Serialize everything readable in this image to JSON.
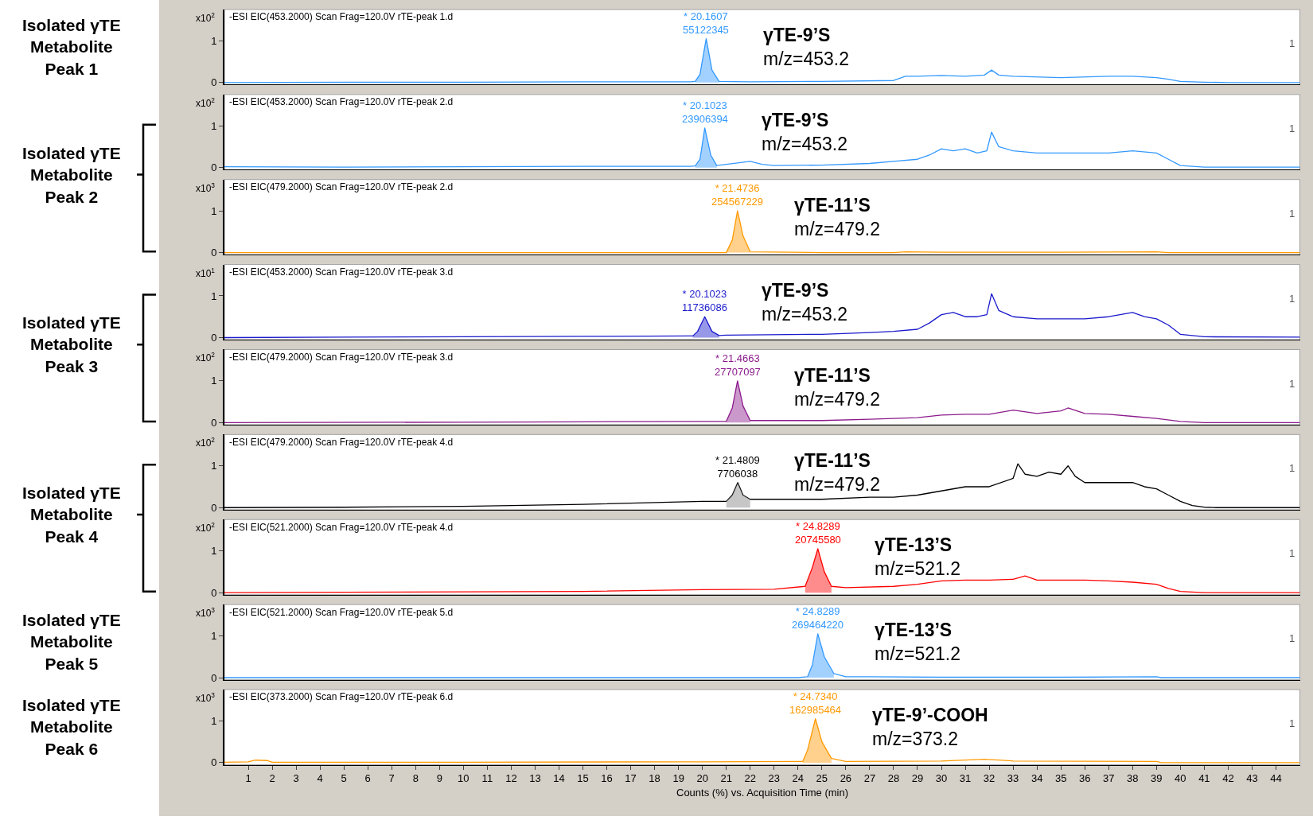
{
  "chart_data": [
    {
      "type": "other",
      "annotations": [
        "Isolated γTE\nMetabolite\nPeak 1",
        "Isolated γTE\nMetabolite\nPeak 2",
        "Isolated γTE\nMetabolite\nPeak 3",
        "Isolated γTE\nMetabolite\nPeak 4",
        "Isolated γTE\nMetabolite\nPeak 5",
        "Isolated γTE\nMetabolite\nPeak 6"
      ]
    },
    {
      "type": "line",
      "title": "-ESI EIC(453.2000) Scan Frag=120.0V rTE-peak 1.d",
      "ylabel": "x10$^{2}$",
      "xlim": [
        0,
        45
      ],
      "ylim": [
        -0.05,
        1.75
      ],
      "yticks": [
        0,
        1
      ],
      "tick_labels": "y",
      "series": [
        {
          "color": "#3399ff",
          "x": [
            0,
            5,
            10,
            15,
            19.5,
            19.7,
            19.9,
            20.16,
            20.4,
            20.7,
            22,
            25,
            28,
            28.5,
            29,
            30,
            31,
            31.8,
            32.1,
            32.4,
            33,
            35,
            37,
            38,
            39,
            39.5,
            40,
            41,
            42,
            45
          ],
          "values": [
            0,
            0.01,
            0.01,
            0.02,
            0.02,
            0.03,
            0.2,
            1.05,
            0.3,
            0.03,
            0.02,
            0.03,
            0.05,
            0.15,
            0.15,
            0.17,
            0.15,
            0.18,
            0.3,
            0.18,
            0.15,
            0.12,
            0.15,
            0.15,
            0.12,
            0.08,
            0.03,
            0.01,
            0,
            0
          ]
        },
        {
          "type": "area",
          "color": "#3399ff",
          "x": [
            19.7,
            19.9,
            20.16,
            20.4,
            20.7
          ],
          "values": [
            0.03,
            0.2,
            1.05,
            0.3,
            0.03
          ]
        }
      ],
      "annotations": [
        {
          "text": "* 20.1607\n55122345",
          "x": 20.16,
          "y": 1.05
        },
        "γTE-9’S\nm/z=453.2",
        "1"
      ]
    },
    {
      "type": "line",
      "title": "-ESI EIC(453.2000) Scan Frag=120.0V rTE-peak 2.d",
      "ylabel": "x10$^{2}$",
      "xlim": [
        0,
        45
      ],
      "ylim": [
        -0.05,
        1.75
      ],
      "yticks": [
        0,
        1
      ],
      "tick_labels": "y",
      "series": [
        {
          "color": "#3399ff",
          "x": [
            0,
            5,
            10,
            15,
            19.5,
            19.7,
            19.9,
            20.1,
            20.35,
            20.6,
            22,
            22.5,
            23,
            25,
            27,
            28,
            29,
            29.5,
            30,
            30.5,
            31,
            31.5,
            31.9,
            32.1,
            32.4,
            33,
            34,
            35,
            36,
            37,
            38,
            39,
            39.5,
            40,
            41,
            45
          ],
          "values": [
            0.02,
            0.01,
            0.02,
            0.03,
            0.03,
            0.04,
            0.2,
            0.95,
            0.3,
            0.05,
            0.15,
            0.08,
            0.05,
            0.06,
            0.1,
            0.15,
            0.2,
            0.3,
            0.45,
            0.4,
            0.45,
            0.35,
            0.4,
            0.85,
            0.5,
            0.4,
            0.35,
            0.35,
            0.35,
            0.35,
            0.4,
            0.35,
            0.2,
            0.05,
            0.01,
            0.01
          ]
        },
        {
          "type": "area",
          "color": "#3399ff",
          "x": [
            19.7,
            19.9,
            20.1,
            20.35,
            20.6
          ],
          "values": [
            0.04,
            0.2,
            0.95,
            0.3,
            0.05
          ]
        }
      ],
      "annotations": [
        {
          "text": "* 20.1023\n23906394",
          "x": 20.1,
          "y": 0.95
        },
        "γTE-9’S\nm/z=453.2",
        "1"
      ]
    },
    {
      "type": "line",
      "title": "-ESI EIC(479.2000) Scan Frag=120.0V rTE-peak 2.d",
      "ylabel": "x10$^{3}$",
      "xlim": [
        0,
        45
      ],
      "ylim": [
        -0.05,
        1.75
      ],
      "yticks": [
        0,
        1
      ],
      "tick_labels": "y",
      "series": [
        {
          "color": "#ff9900",
          "x": [
            0,
            10,
            20,
            21,
            21.25,
            21.47,
            21.7,
            22,
            25,
            28,
            28.5,
            30,
            35,
            39,
            39.5,
            45
          ],
          "values": [
            0,
            0,
            0,
            0,
            0.3,
            1.0,
            0.4,
            0.02,
            0,
            0,
            0.02,
            0.01,
            0.01,
            0.02,
            0,
            0
          ]
        },
        {
          "type": "area",
          "color": "#ff9900",
          "x": [
            21,
            21.25,
            21.47,
            21.7,
            22
          ],
          "values": [
            0,
            0.3,
            1.0,
            0.4,
            0.02
          ]
        }
      ],
      "annotations": [
        {
          "text": "* 21.4736\n254567229",
          "x": 21.47,
          "y": 1.0
        },
        "γTE-11’S\nm/z=479.2",
        "1"
      ]
    },
    {
      "type": "line",
      "title": "-ESI EIC(453.2000) Scan Frag=120.0V rTE-peak 3.d",
      "ylabel": "x10$^{1}$",
      "xlim": [
        0,
        45
      ],
      "ylim": [
        -0.05,
        1.75
      ],
      "yticks": [
        0,
        1
      ],
      "tick_labels": "y",
      "series": [
        {
          "color": "#1a1acc",
          "x": [
            0,
            5,
            10,
            15,
            19.5,
            19.6,
            19.8,
            20.1,
            20.4,
            20.7,
            21,
            25,
            27,
            28,
            29,
            29.5,
            30,
            30.5,
            31,
            31.5,
            31.9,
            32.1,
            32.4,
            33,
            34,
            35,
            36,
            37,
            38,
            38.5,
            39,
            39.5,
            40,
            41,
            45
          ],
          "values": [
            0,
            0.01,
            0.02,
            0.03,
            0.04,
            0.04,
            0.15,
            0.5,
            0.15,
            0.05,
            0.06,
            0.08,
            0.12,
            0.15,
            0.2,
            0.35,
            0.55,
            0.6,
            0.5,
            0.5,
            0.55,
            1.05,
            0.65,
            0.5,
            0.45,
            0.45,
            0.45,
            0.5,
            0.6,
            0.5,
            0.45,
            0.3,
            0.08,
            0.02,
            0.01
          ]
        },
        {
          "type": "area",
          "color": "#1a1acc",
          "x": [
            19.6,
            19.8,
            20.1,
            20.4,
            20.7
          ],
          "values": [
            0.04,
            0.15,
            0.5,
            0.15,
            0.05
          ]
        }
      ],
      "annotations": [
        {
          "text": "* 20.1023\n11736086",
          "x": 20.1,
          "y": 0.5
        },
        "γTE-9’S\nm/z=453.2",
        "1"
      ]
    },
    {
      "type": "line",
      "title": "-ESI EIC(479.2000) Scan Frag=120.0V rTE-peak 3.d",
      "ylabel": "x10$^{2}$",
      "xlim": [
        0,
        45
      ],
      "ylim": [
        -0.05,
        1.75
      ],
      "yticks": [
        0,
        1
      ],
      "tick_labels": "y",
      "series": [
        {
          "color": "#8b1a8b",
          "x": [
            0,
            10,
            15,
            20,
            21,
            21.25,
            21.47,
            21.7,
            22,
            25,
            27,
            28,
            29,
            30,
            31,
            32,
            33,
            34,
            35,
            35.3,
            36,
            37,
            38,
            39,
            40,
            41,
            45
          ],
          "values": [
            0,
            0.01,
            0.02,
            0.03,
            0.03,
            0.35,
            1.0,
            0.4,
            0.05,
            0.05,
            0.08,
            0.1,
            0.12,
            0.18,
            0.2,
            0.2,
            0.3,
            0.22,
            0.28,
            0.35,
            0.22,
            0.2,
            0.15,
            0.1,
            0.03,
            0,
            0
          ]
        },
        {
          "type": "area",
          "color": "#8b1a8b",
          "x": [
            21,
            21.25,
            21.47,
            21.7,
            22
          ],
          "values": [
            0.03,
            0.35,
            1.0,
            0.4,
            0.05
          ]
        }
      ],
      "annotations": [
        {
          "text": "* 21.4663\n27707097",
          "x": 21.47,
          "y": 1.0
        },
        "γTE-11’S\nm/z=479.2",
        "1"
      ]
    },
    {
      "type": "line",
      "title": "-ESI EIC(479.2000) Scan Frag=120.0V rTE-peak 4.d",
      "ylabel": "x10$^{2}$",
      "xlim": [
        0,
        45
      ],
      "ylim": [
        -0.05,
        1.75
      ],
      "yticks": [
        0,
        1
      ],
      "tick_labels": "y",
      "series": [
        {
          "color": "#000000",
          "x": [
            0,
            5,
            10,
            15,
            20,
            21,
            21.25,
            21.48,
            21.7,
            22,
            23,
            25,
            27,
            28,
            29,
            30,
            31,
            32,
            33,
            33.2,
            33.5,
            34,
            34.5,
            35,
            35.3,
            35.6,
            36,
            37,
            38,
            38.5,
            39,
            39.5,
            40,
            40.5,
            41,
            41.5,
            45
          ],
          "values": [
            0,
            0.01,
            0.03,
            0.08,
            0.15,
            0.15,
            0.3,
            0.6,
            0.3,
            0.2,
            0.2,
            0.2,
            0.25,
            0.25,
            0.3,
            0.4,
            0.5,
            0.5,
            0.7,
            1.05,
            0.8,
            0.75,
            0.85,
            0.8,
            1.0,
            0.75,
            0.6,
            0.6,
            0.6,
            0.5,
            0.45,
            0.3,
            0.15,
            0.05,
            0.01,
            0,
            0
          ]
        },
        {
          "type": "area",
          "color": "#808080",
          "x": [
            21,
            21.25,
            21.48,
            21.7,
            22
          ],
          "values": [
            0.15,
            0.3,
            0.6,
            0.3,
            0.2
          ]
        }
      ],
      "annotations": [
        {
          "text": "* 21.4809\n7706038",
          "x": 21.48,
          "y": 0.6
        },
        "γTE-11’S\nm/z=479.2",
        "1"
      ]
    },
    {
      "type": "line",
      "title": "-ESI EIC(521.2000) Scan Frag=120.0V rTE-peak 4.d",
      "ylabel": "x10$^{2}$",
      "xlim": [
        0,
        45
      ],
      "ylim": [
        -0.05,
        1.75
      ],
      "yticks": [
        0,
        1
      ],
      "tick_labels": "y",
      "series": [
        {
          "color": "#ff0000",
          "x": [
            0,
            5,
            10,
            15,
            20,
            23,
            24.3,
            24.6,
            24.83,
            25.1,
            25.4,
            26,
            28,
            29,
            30,
            31,
            32,
            33,
            33.5,
            34,
            35,
            36,
            37,
            38,
            39,
            39.5,
            40,
            41,
            45
          ],
          "values": [
            0,
            0.01,
            0.02,
            0.03,
            0.07,
            0.08,
            0.15,
            0.6,
            1.05,
            0.5,
            0.15,
            0.12,
            0.15,
            0.2,
            0.28,
            0.3,
            0.3,
            0.32,
            0.4,
            0.3,
            0.3,
            0.3,
            0.28,
            0.25,
            0.2,
            0.1,
            0.03,
            0,
            0
          ]
        },
        {
          "type": "area",
          "color": "#ff0000",
          "x": [
            24.3,
            24.6,
            24.83,
            25.1,
            25.4
          ],
          "values": [
            0.15,
            0.6,
            1.05,
            0.5,
            0.15
          ]
        }
      ],
      "annotations": [
        {
          "text": "* 24.8289\n20745580",
          "x": 24.83,
          "y": 1.05
        },
        "γTE-13’S\nm/z=521.2",
        "1"
      ]
    },
    {
      "type": "line",
      "title": "-ESI EIC(521.2000) Scan Frag=120.0V rTE-peak 5.d",
      "ylabel": "x10$^{3}$",
      "xlim": [
        0,
        45
      ],
      "ylim": [
        -0.05,
        1.75
      ],
      "yticks": [
        0,
        1
      ],
      "tick_labels": "y",
      "series": [
        {
          "color": "#3399ff",
          "x": [
            0,
            20,
            24,
            24.4,
            24.6,
            24.83,
            25.1,
            25.5,
            26,
            27,
            30,
            35,
            39,
            39.2,
            45
          ],
          "values": [
            0,
            0,
            0,
            0.02,
            0.3,
            1.05,
            0.5,
            0.1,
            0.02,
            0.02,
            0.01,
            0.01,
            0.02,
            0,
            0
          ]
        },
        {
          "type": "area",
          "color": "#3399ff",
          "x": [
            24.4,
            24.6,
            24.83,
            25.1,
            25.5
          ],
          "values": [
            0.02,
            0.3,
            1.05,
            0.5,
            0.1
          ]
        }
      ],
      "annotations": [
        {
          "text": "* 24.8289\n269464220",
          "x": 24.83,
          "y": 1.05
        },
        "γTE-13’S\nm/z=521.2",
        "1"
      ]
    },
    {
      "type": "line",
      "title": "-ESI EIC(373.2000) Scan Frag=120.0V rTE-peak 6.d",
      "ylabel": "x10$^{3}$",
      "xlabel": "Counts (%) vs. Acquisition Time (min)",
      "xlim": [
        0,
        45
      ],
      "ylim": [
        -0.05,
        1.75
      ],
      "yticks": [
        0,
        1
      ],
      "xticks": [
        1,
        2,
        3,
        4,
        5,
        6,
        7,
        8,
        9,
        10,
        11,
        12,
        13,
        14,
        15,
        16,
        17,
        18,
        19,
        20,
        21,
        22,
        23,
        24,
        25,
        26,
        27,
        28,
        29,
        30,
        31,
        32,
        33,
        34,
        35,
        36,
        37,
        38,
        39,
        40,
        41,
        42,
        43,
        44
      ],
      "series": [
        {
          "color": "#ff9900",
          "x": [
            0,
            1,
            1.3,
            1.8,
            2,
            10,
            19,
            20,
            24,
            24.2,
            24.4,
            24.73,
            25,
            25.4,
            26,
            30,
            31.8,
            33,
            39,
            39.2,
            45
          ],
          "values": [
            0.01,
            0.02,
            0.06,
            0.05,
            0.01,
            0.01,
            0.02,
            0.02,
            0.03,
            0.03,
            0.3,
            1.05,
            0.5,
            0.1,
            0.03,
            0.04,
            0.08,
            0.04,
            0.03,
            0,
            0
          ]
        },
        {
          "type": "area",
          "color": "#ff9900",
          "x": [
            24.2,
            24.4,
            24.73,
            25,
            25.4
          ],
          "values": [
            0.03,
            0.3,
            1.05,
            0.5,
            0.1
          ]
        }
      ],
      "annotations": [
        {
          "text": "* 24.7340\n162985464",
          "x": 24.73,
          "y": 1.05
        },
        "γTE-9’-COOH\nm/z=373.2",
        "1"
      ]
    }
  ]
}
